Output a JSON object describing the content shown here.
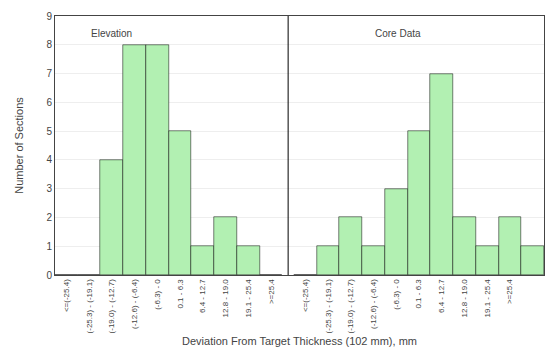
{
  "chart_data": {
    "type": "bar",
    "categories": [
      "<=(-25.4)",
      "(-25.3) - (-19.1)",
      "(-19.0) - (-12.7)",
      "(-12.6) - (-6.4)",
      "(-6.3) - 0",
      "0.1 - 6.3",
      "6.4 - 12.7",
      "12.8 - 19.0",
      "19.1 - 25.4",
      ">=25.4",
      "<=(-25.4)",
      "(-25.3) - (-19.1)",
      "(-19.0) - (-12.7)",
      "(-12.6) - (-6.4)",
      "(-6.3) - 0",
      "0.1 - 6.3",
      "6.4 - 12.7",
      "12.8 - 19.0",
      "19.1 - 25.4",
      ">=25.4",
      null
    ],
    "values": [
      0,
      0,
      4,
      8,
      8,
      5,
      1,
      2,
      1,
      0,
      0,
      1,
      2,
      1,
      3,
      5,
      7,
      2,
      1,
      2,
      1
    ],
    "color": "#b2f0b2",
    "xlabel": "Deviation From Target Thickness (102 mm), mm",
    "ylabel": "Number of Sections",
    "ylim": [
      0,
      9
    ],
    "yticks": [
      0,
      1,
      2,
      3,
      4,
      5,
      6,
      7,
      8,
      9
    ],
    "grid": true,
    "annotations": [
      {
        "text": "Elevation",
        "x": 1,
        "y": 8.65
      },
      {
        "text": "Core Data",
        "x": 13,
        "y": 8.65
      }
    ]
  }
}
